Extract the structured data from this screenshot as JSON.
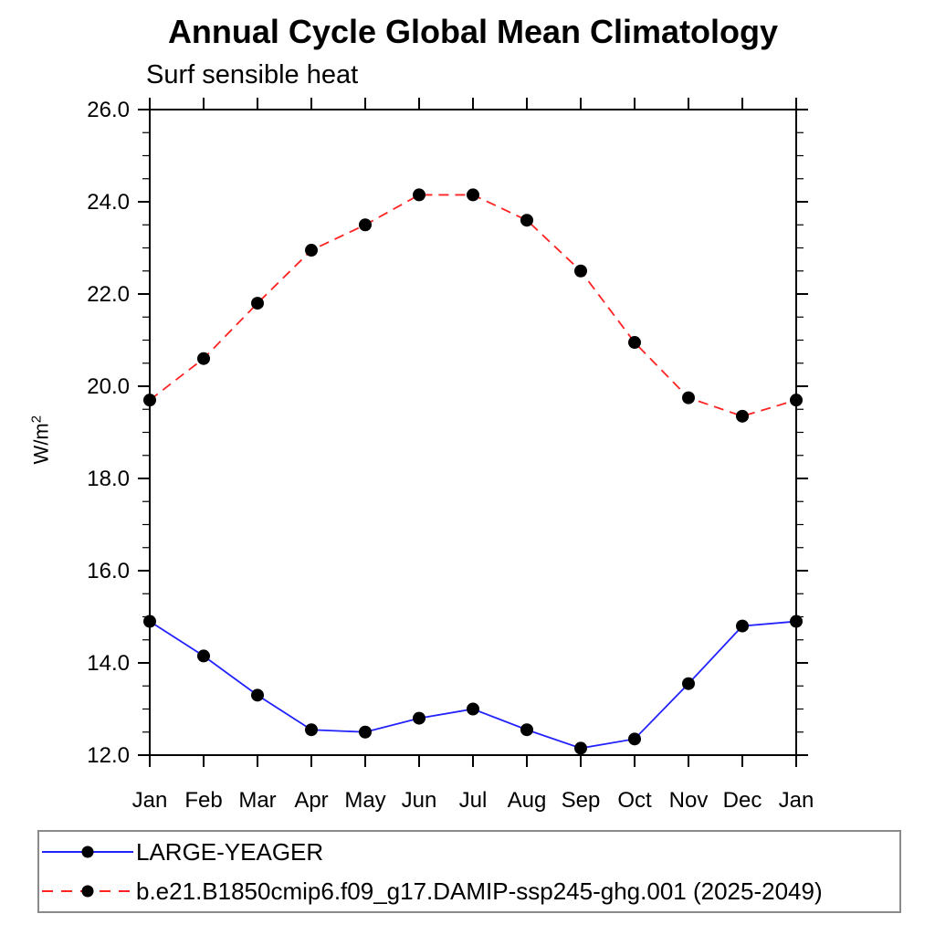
{
  "header": {
    "title": "Annual Cycle Global Mean Climatology",
    "subtitle": "Surf sensible heat"
  },
  "chart_data": {
    "type": "line",
    "title": "Annual Cycle Global Mean Climatology",
    "subtitle": "Surf sensible heat",
    "ylabel": {
      "base": "W/m",
      "sup": "2"
    },
    "xlabel": "",
    "ylim": [
      12.0,
      26.0
    ],
    "ytick_step": 2.0,
    "yminor_step": 0.5,
    "ytick_labels": [
      "12.0",
      "14.0",
      "16.0",
      "18.0",
      "20.0",
      "22.0",
      "24.0",
      "26.0"
    ],
    "categories": [
      "Jan",
      "Feb",
      "Mar",
      "Apr",
      "May",
      "Jun",
      "Jul",
      "Aug",
      "Sep",
      "Oct",
      "Nov",
      "Dec",
      "Jan"
    ],
    "grid": false,
    "legend_position": "bottom",
    "frame_color": "#000000",
    "marker_color": "#000000",
    "series": [
      {
        "name": "LARGE-YEAGER",
        "color": "#2222ff",
        "line_style": "solid",
        "marker": "circle",
        "values": [
          14.9,
          14.15,
          13.3,
          12.55,
          12.5,
          12.8,
          13.0,
          12.55,
          12.15,
          12.35,
          13.55,
          14.8,
          14.9
        ]
      },
      {
        "name": "b.e21.B1850cmip6.f09_g17.DAMIP-ssp245-ghg.001 (2025-2049)",
        "color": "#ff2222",
        "line_style": "dashed",
        "marker": "circle",
        "values": [
          19.7,
          20.6,
          21.8,
          22.95,
          23.5,
          24.15,
          24.15,
          23.6,
          22.5,
          20.95,
          19.75,
          19.35,
          19.7
        ]
      }
    ]
  }
}
